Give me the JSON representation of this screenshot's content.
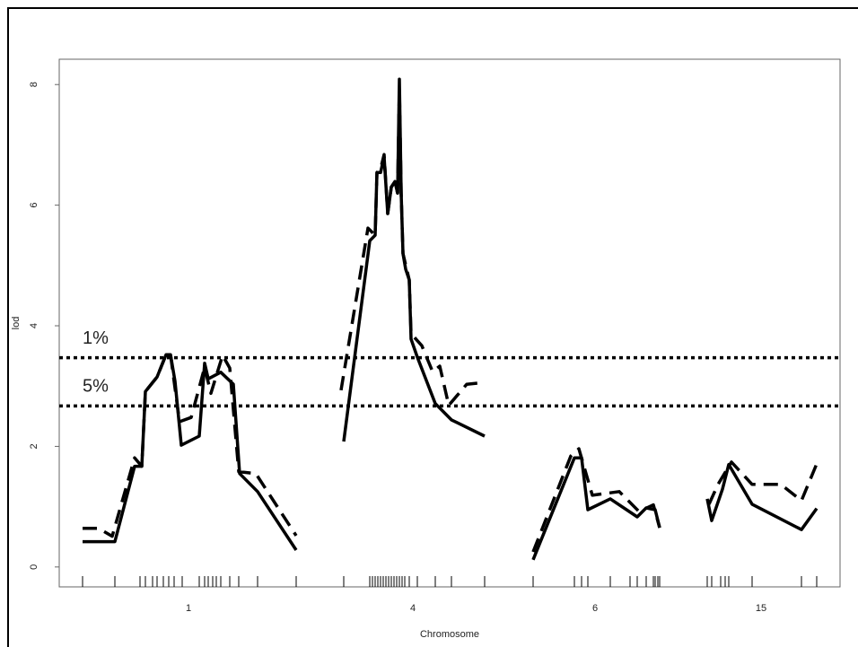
{
  "chart_data": {
    "type": "line",
    "x_label": "Chromosome",
    "y_label": "lod",
    "xlim": [
      0,
      870
    ],
    "ylim": [
      -0.33,
      8.42
    ],
    "xticks": [
      {
        "value": 144,
        "label": "1"
      },
      {
        "value": 394,
        "label": "4"
      },
      {
        "value": 597,
        "label": "6"
      },
      {
        "value": 782,
        "label": "15"
      }
    ],
    "yticks": [
      0,
      2,
      4,
      6,
      8
    ],
    "thresholds": [
      {
        "label": "1%",
        "value": 3.47
      },
      {
        "label": "5%",
        "value": 2.67
      }
    ],
    "markers": [
      26,
      62,
      90,
      96,
      104,
      109,
      116,
      122,
      128,
      137,
      156,
      162,
      166,
      171,
      175,
      180,
      190,
      200,
      221,
      264,
      317,
      346,
      349,
      352,
      355,
      358,
      361,
      364,
      367,
      370,
      373,
      376,
      379,
      382,
      385,
      390,
      399,
      419,
      437,
      474,
      528,
      574,
      582,
      589,
      614,
      636,
      644,
      654,
      662,
      664,
      667,
      669,
      722,
      727,
      737,
      742,
      746,
      772,
      827,
      844
    ],
    "series": [
      {
        "name": "solid",
        "color": "#000000",
        "dash": false,
        "x": [
          26,
          62,
          84,
          92,
          96,
          109,
          119,
          124,
          129,
          136,
          156,
          162,
          166,
          180,
          194,
          201,
          221,
          264,
          null,
          317,
          346,
          352,
          354,
          358,
          362,
          366,
          370,
          374,
          377,
          379,
          381,
          383,
          386,
          390,
          392,
          399,
          419,
          437,
          474,
          null,
          528,
          574,
          582,
          589,
          614,
          644,
          654,
          664,
          669,
          null,
          722,
          727,
          739,
          746,
          772,
          827,
          844
        ],
        "values": [
          0.42,
          0.42,
          1.67,
          1.67,
          2.91,
          3.15,
          3.52,
          3.52,
          3.08,
          2.02,
          2.17,
          3.38,
          3.12,
          3.23,
          3.03,
          1.55,
          1.25,
          0.28,
          null,
          2.08,
          5.41,
          5.5,
          6.54,
          6.54,
          6.8,
          5.86,
          6.3,
          6.39,
          6.2,
          8.09,
          6.2,
          5.2,
          4.94,
          4.76,
          3.78,
          3.48,
          2.71,
          2.44,
          2.17,
          null,
          0.12,
          1.81,
          1.81,
          0.95,
          1.13,
          0.83,
          0.98,
          0.95,
          0.65,
          null,
          1.13,
          0.77,
          1.29,
          1.7,
          1.04,
          0.62,
          0.97
        ]
      },
      {
        "name": "dashed",
        "color": "#000000",
        "dash": true,
        "x": [
          26,
          44,
          59,
          84,
          92,
          96,
          109,
          119,
          124,
          134,
          147,
          162,
          169,
          182,
          190,
          200,
          219,
          264,
          null,
          314,
          344,
          352,
          354,
          358,
          362,
          366,
          370,
          374,
          377,
          379,
          381,
          383,
          390,
          392,
          404,
          416,
          424,
          434,
          454,
          474,
          null,
          528,
          570,
          579,
          594,
          624,
          646,
          662,
          669,
          null,
          724,
          734,
          749,
          772,
          804,
          827,
          844
        ],
        "values": [
          0.64,
          0.64,
          0.51,
          1.81,
          1.67,
          2.91,
          3.15,
          3.52,
          3.52,
          2.41,
          2.48,
          3.31,
          2.88,
          3.51,
          3.3,
          1.58,
          1.55,
          0.52,
          null,
          2.93,
          5.62,
          5.5,
          6.54,
          6.6,
          6.84,
          5.86,
          6.3,
          6.39,
          6.2,
          7.94,
          6.2,
          5.2,
          4.76,
          3.87,
          3.67,
          3.24,
          3.33,
          2.68,
          3.03,
          3.06,
          null,
          0.25,
          1.84,
          1.96,
          1.19,
          1.25,
          0.92,
          1.03,
          0.65,
          null,
          1.04,
          1.37,
          1.74,
          1.37,
          1.37,
          1.1,
          1.71
        ]
      }
    ]
  }
}
